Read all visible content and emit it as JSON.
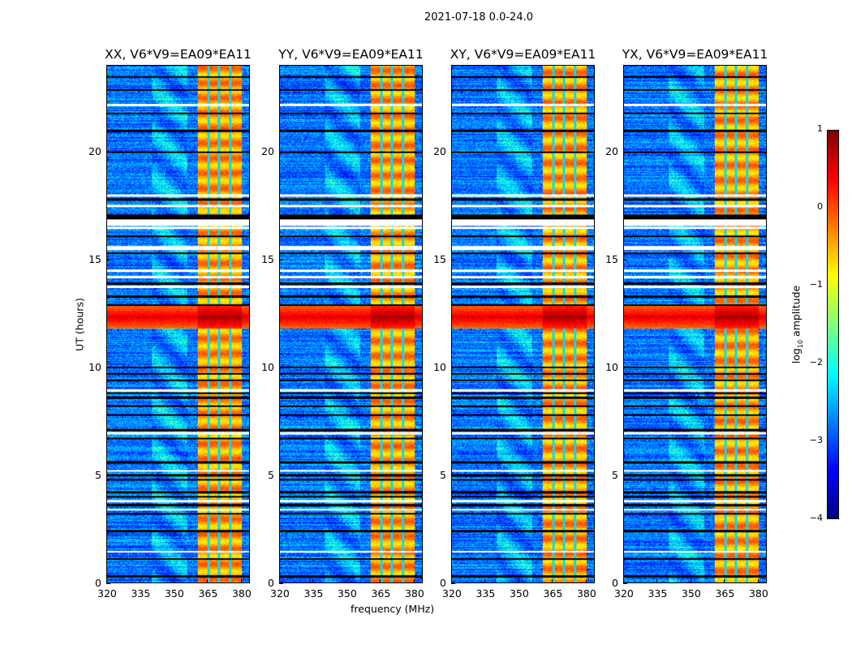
{
  "chart_data": {
    "type": "heatmap",
    "title": "2021-07-18 0.0-24.0",
    "xlabel": "frequency (MHz)",
    "ylabel": "UT (hours)",
    "xlim": [
      320,
      384
    ],
    "ylim": [
      0,
      24
    ],
    "xticks": [
      "320",
      "335",
      "350",
      "365",
      "380"
    ],
    "xtick_values": [
      320,
      335,
      350,
      365,
      380
    ],
    "yticks": [
      "0",
      "5",
      "10",
      "15",
      "20"
    ],
    "ytick_values": [
      0,
      5,
      10,
      15,
      20
    ],
    "panels": [
      {
        "title": "XX, V6*V9=EA09*EA11"
      },
      {
        "title": "YY, V6*V9=EA09*EA11"
      },
      {
        "title": "XY, V6*V9=EA09*EA11"
      },
      {
        "title": "YX, V6*V9=EA09*EA11"
      }
    ],
    "colorbar": {
      "label": "log",
      "label_sub": "10",
      "label_rest": " amplitude",
      "range": [
        -4,
        1
      ],
      "ticks": [
        "1",
        "0",
        "−1",
        "−2",
        "−3",
        "−4"
      ],
      "tick_values": [
        1,
        0,
        -1,
        -2,
        -3,
        -4
      ],
      "colormap": "jet"
    },
    "features": {
      "background_log_amp": -2.8,
      "bright_band_MHz": [
        360.7,
        380.6
      ],
      "bright_band_log_amp": -0.4,
      "channel_gaps_MHz": [
        365.5,
        370.3,
        375.2
      ],
      "rfi_burst_UT": [
        11.8,
        12.9
      ],
      "rfi_burst_log_amp": 0.5,
      "flagged_rows_UT": [
        23.5,
        22.9,
        21.8,
        21.0,
        20.0,
        17.8,
        17.0,
        16.1,
        15.3,
        13.9,
        13.3,
        12.9,
        10.0,
        9.7,
        9.4,
        8.8,
        8.6,
        8.2,
        7.8,
        7.1,
        6.7,
        5.6,
        5.0,
        4.8,
        4.2,
        4.0,
        3.6,
        3.2,
        2.4,
        1.1,
        0.3
      ],
      "blank_rows_UT": [
        16.8,
        16.5,
        15.55,
        14.5,
        14.2,
        13.75,
        8.95,
        6.95,
        5.2,
        3.8,
        3.4,
        1.45,
        22.2,
        18.0,
        17.5
      ]
    }
  }
}
